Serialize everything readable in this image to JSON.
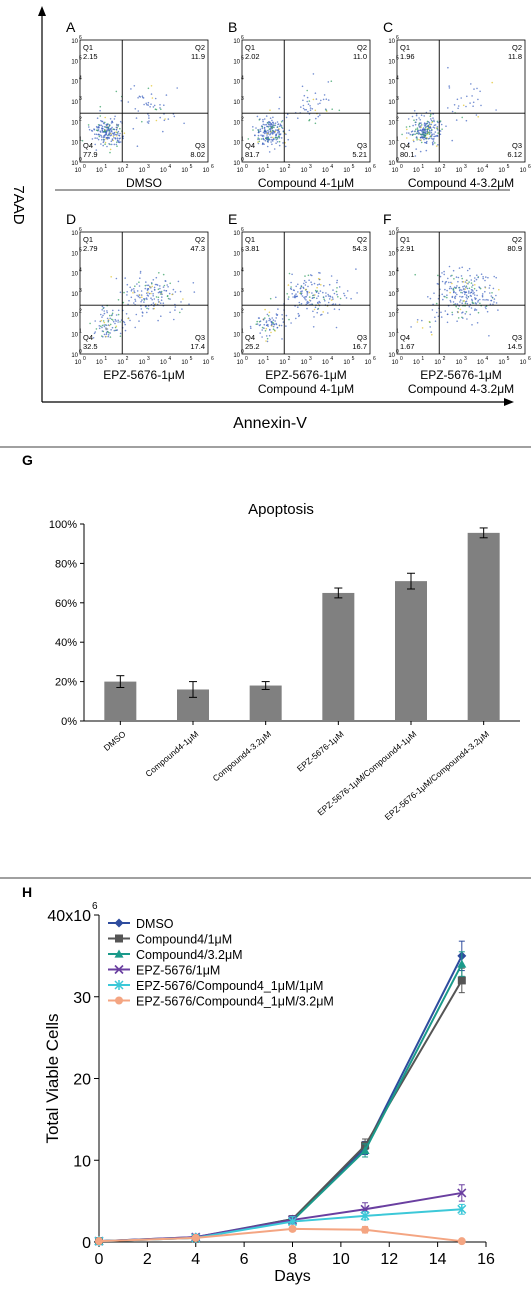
{
  "panel_letters": [
    "A",
    "B",
    "C",
    "D",
    "E",
    "F",
    "G",
    "H"
  ],
  "flow": {
    "y_axis_label": "7AAD",
    "x_axis_label": "Annexin-V",
    "tick_exponents": [
      "0",
      "1",
      "2",
      "3",
      "4",
      "5",
      "6"
    ],
    "tick_base": "10",
    "quadrant_names": [
      "Q1",
      "Q2",
      "Q3",
      "Q4"
    ],
    "plots": [
      {
        "letter": "A",
        "caption": [
          "DMSO"
        ],
        "q1": "2.15",
        "q2": "11.9",
        "q3": "8.02",
        "q4": "77.9",
        "apoptotic": 0.2
      },
      {
        "letter": "B",
        "caption": [
          "Compound 4-1μM"
        ],
        "q1": "2.02",
        "q2": "11.0",
        "q3": "5.21",
        "q4": "81.7",
        "apoptotic": 0.16
      },
      {
        "letter": "C",
        "caption": [
          "Compound 4-3.2μM"
        ],
        "q1": "1.96",
        "q2": "11.8",
        "q3": "6.12",
        "q4": "80.1",
        "apoptotic": 0.18
      },
      {
        "letter": "D",
        "caption": [
          "EPZ-5676-1μM"
        ],
        "q1": "2.79",
        "q2": "47.3",
        "q3": "17.4",
        "q4": "32.5",
        "apoptotic": 0.65
      },
      {
        "letter": "E",
        "caption": [
          "EPZ-5676-1μM",
          "Compound 4-1μM"
        ],
        "q1": "3.81",
        "q2": "54.3",
        "q3": "16.7",
        "q4": "25.2",
        "apoptotic": 0.71
      },
      {
        "letter": "F",
        "caption": [
          "EPZ-5676-1μM",
          "Compound 4-3.2μM"
        ],
        "q1": "2.91",
        "q2": "80.9",
        "q3": "14.5",
        "q4": "1.67",
        "apoptotic": 0.95
      }
    ]
  },
  "chart_data": [
    {
      "type": "bar",
      "title": "Apoptosis",
      "categories": [
        "DMSO",
        "Compound4-1μM",
        "Compound4-3.2μM",
        "EPZ-5676-1μM",
        "EPZ-5676-1μM/Compound4-1μM",
        "EPZ-5676-1μM/Compound4-3.2μM"
      ],
      "values": [
        20,
        16,
        18,
        65,
        71,
        95.5
      ],
      "errors": [
        3,
        4,
        2,
        2.5,
        4,
        2.5
      ],
      "ylim": [
        0,
        100
      ],
      "yticks": [
        0,
        20,
        40,
        60,
        80,
        100
      ],
      "ytick_labels": [
        "0%",
        "20%",
        "40%",
        "60%",
        "80%",
        "100%"
      ],
      "bar_color": "#808080",
      "grid": false
    },
    {
      "type": "line",
      "xlabel": "Days",
      "ylabel": "Total Viable Cells",
      "xlim": [
        0,
        16
      ],
      "ylim": [
        0,
        40
      ],
      "xticks": [
        0,
        2,
        4,
        6,
        8,
        10,
        12,
        14,
        16
      ],
      "yticks": [
        0,
        10,
        20,
        30,
        40
      ],
      "ytick_labels": [
        "0",
        "10",
        "20",
        "30",
        "40x10"
      ],
      "ytick_top_exponent": "6",
      "legend_position": "top-left",
      "x": [
        0,
        4,
        8,
        11,
        15
      ],
      "series": [
        {
          "name": "DMSO",
          "values": [
            0.1,
            0.6,
            2.8,
            11.5,
            35
          ],
          "errors": [
            0.2,
            0.3,
            0.4,
            0.8,
            1.8
          ],
          "color": "#2e4c9e",
          "marker": "diamond"
        },
        {
          "name": "Compound4/1μM",
          "values": [
            0.1,
            0.5,
            2.8,
            11.8,
            32
          ],
          "errors": [
            0.2,
            0.3,
            0.4,
            0.8,
            1.5
          ],
          "color": "#555555",
          "marker": "square"
        },
        {
          "name": "Compound4/3.2μM",
          "values": [
            0.1,
            0.55,
            2.6,
            11.2,
            34
          ],
          "errors": [
            0.2,
            0.3,
            0.4,
            0.8,
            1.5
          ],
          "color": "#1a9a8a",
          "marker": "triangle"
        },
        {
          "name": "EPZ-5676/1μM",
          "values": [
            0.1,
            0.6,
            2.7,
            4,
            6
          ],
          "errors": [
            0.2,
            0.3,
            0.5,
            0.8,
            1
          ],
          "color": "#6a3fa0",
          "marker": "x"
        },
        {
          "name": "EPZ-5676/Compound4_1μM/1μM",
          "values": [
            0.1,
            0.5,
            2.5,
            3.2,
            4
          ],
          "errors": [
            0.2,
            0.3,
            0.6,
            0.5,
            0.6
          ],
          "color": "#3cc8d8",
          "marker": "star"
        },
        {
          "name": "EPZ-5676/Compound4_1μM/3.2μM",
          "values": [
            0.1,
            0.5,
            1.6,
            1.5,
            0.1
          ],
          "errors": [
            0.1,
            0.2,
            0.3,
            0.4,
            0.1
          ],
          "color": "#f4a582",
          "marker": "circle"
        }
      ],
      "grid": false
    }
  ]
}
